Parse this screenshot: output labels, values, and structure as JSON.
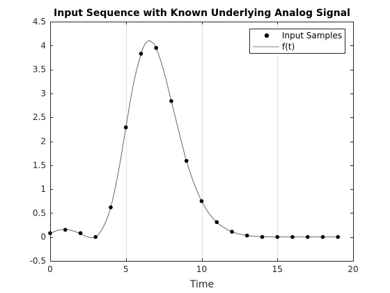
{
  "chart_data": {
    "type": "line",
    "title": "Input Sequence with Known Underlying Analog Signal",
    "xlabel": "Time",
    "ylabel": "",
    "xlim": [
      0,
      20
    ],
    "ylim": [
      -0.5,
      4.5
    ],
    "xticks": [
      0,
      5,
      10,
      15,
      20
    ],
    "xtick_labels": [
      "0",
      "5",
      "10",
      "15",
      "20"
    ],
    "yticks": [
      -0.5,
      0,
      0.5,
      1,
      1.5,
      2,
      2.5,
      3,
      3.5,
      4,
      4.5
    ],
    "ytick_labels": [
      "-0.5",
      "0",
      "0.5",
      "1",
      "1.5",
      "2",
      "2.5",
      "3",
      "3.5",
      "4",
      "4.5"
    ],
    "grid_x": true,
    "grid_y": false,
    "legend_position": "top-right",
    "series": [
      {
        "name": "Input Samples",
        "kind": "markers",
        "color": "#000000",
        "x": [
          0,
          1,
          2,
          3,
          4,
          5,
          6,
          7,
          8,
          9,
          10,
          11,
          12,
          13,
          14,
          15,
          16,
          17,
          18,
          19
        ],
        "y": [
          0.08,
          0.15,
          0.08,
          0.0,
          0.62,
          2.29,
          3.83,
          3.95,
          2.84,
          1.59,
          0.75,
          0.31,
          0.11,
          0.03,
          0.0,
          0.0,
          0.0,
          0.0,
          0.0,
          0.0
        ]
      },
      {
        "name": "f(t)",
        "kind": "line",
        "color": "#000000",
        "x": [
          0,
          0.5,
          1,
          1.5,
          2,
          2.5,
          3,
          3.5,
          4,
          4.5,
          5,
          5.5,
          6,
          6.25,
          6.5,
          6.75,
          7,
          7.5,
          8,
          8.5,
          9,
          9.5,
          10,
          10.5,
          11,
          11.5,
          12,
          12.5,
          13,
          13.5,
          14,
          15,
          16,
          17,
          18,
          19
        ],
        "y": [
          0.07,
          0.14,
          0.16,
          0.13,
          0.07,
          0.0,
          0.0,
          0.2,
          0.62,
          1.35,
          2.29,
          3.2,
          3.83,
          4.02,
          4.1,
          4.06,
          3.95,
          3.47,
          2.84,
          2.2,
          1.59,
          1.12,
          0.75,
          0.49,
          0.31,
          0.19,
          0.11,
          0.06,
          0.03,
          0.015,
          0.005,
          0.0,
          0.0,
          0.0,
          0.0,
          0.0
        ]
      }
    ]
  }
}
